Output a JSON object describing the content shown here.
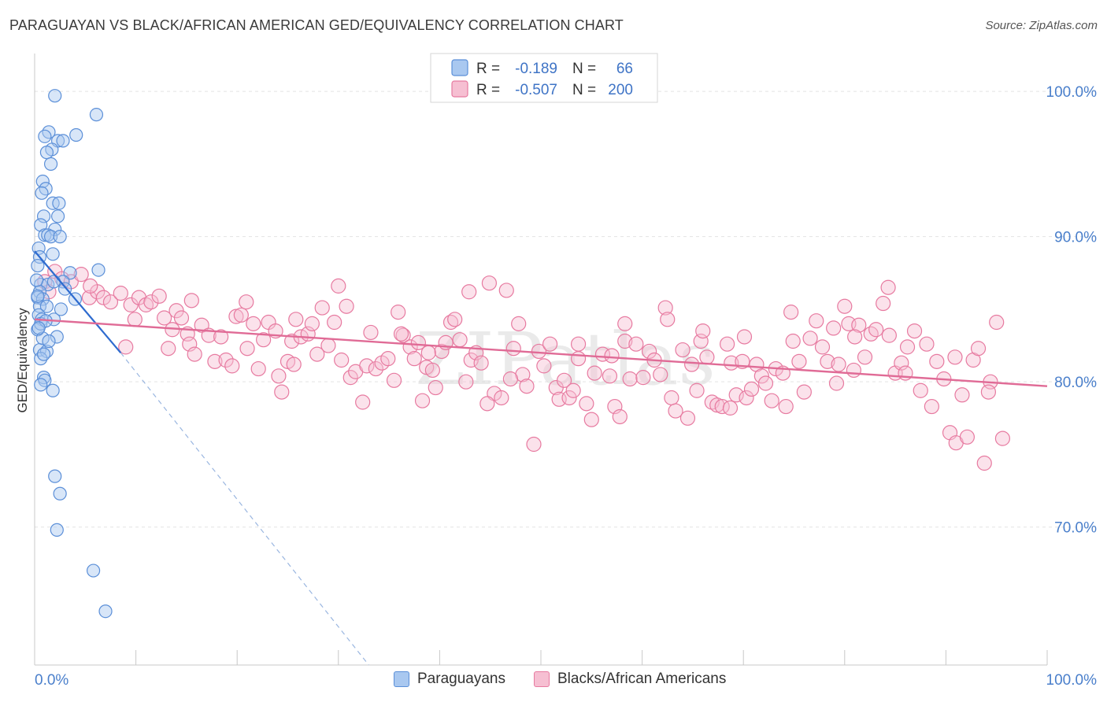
{
  "title": "PARAGUAYAN VS BLACK/AFRICAN AMERICAN GED/EQUIVALENCY CORRELATION CHART",
  "source": "Source: ZipAtlas.com",
  "watermark": "ZIPatlas",
  "colors": {
    "blue": "#5b8fd8",
    "blue_fill": "#a9c8f0",
    "blue_line": "#2e6bcf",
    "pink": "#e77aa0",
    "pink_fill": "#f6bfd2",
    "pink_line": "#e06b96",
    "axis_text": "#4a7fcb",
    "grid": "#e3e3e3"
  },
  "legend": {
    "row1": {
      "r_label": "R =",
      "r_value": "-0.189",
      "n_label": "N =",
      "n_value": "66"
    },
    "row2": {
      "r_label": "R =",
      "r_value": "-0.507",
      "n_label": "N =",
      "n_value": "200"
    }
  },
  "bottom_legend": {
    "paraguayans": "Paraguayans",
    "blacks": "Blacks/African Americans"
  },
  "chart_data": {
    "type": "scatter",
    "xlabel": "",
    "ylabel": "GED/Equivalency",
    "xlim": [
      0,
      100
    ],
    "ylim": [
      60.5,
      102.5
    ],
    "x_tick_labels": {
      "left": "0.0%",
      "right": "100.0%"
    },
    "y_ticks": [
      {
        "value": 100,
        "label": "100.0%"
      },
      {
        "value": 90,
        "label": "90.0%"
      },
      {
        "value": 80,
        "label": "80.0%"
      },
      {
        "value": 70,
        "label": "70.0%"
      }
    ],
    "grid": true,
    "series": [
      {
        "name": "Paraguayans",
        "color": "#5b8fd8",
        "trend": {
          "x0": 0,
          "y0": 89.0,
          "x1": 8.5,
          "y1": 82.0,
          "dash_to_x": 33,
          "dash_to_y": 60.5
        },
        "points": [
          [
            2.0,
            99.7
          ],
          [
            6.1,
            98.4
          ],
          [
            1.4,
            97.2
          ],
          [
            1.0,
            96.9
          ],
          [
            2.3,
            96.6
          ],
          [
            2.8,
            96.6
          ],
          [
            4.1,
            97.0
          ],
          [
            1.7,
            96.0
          ],
          [
            1.2,
            95.8
          ],
          [
            1.6,
            95.0
          ],
          [
            0.8,
            93.8
          ],
          [
            1.1,
            93.3
          ],
          [
            0.7,
            93.0
          ],
          [
            1.8,
            92.3
          ],
          [
            2.4,
            92.3
          ],
          [
            0.9,
            91.4
          ],
          [
            2.3,
            91.4
          ],
          [
            0.6,
            90.8
          ],
          [
            2.0,
            90.5
          ],
          [
            1.0,
            90.1
          ],
          [
            1.3,
            90.1
          ],
          [
            1.6,
            90.0
          ],
          [
            2.5,
            90.0
          ],
          [
            0.4,
            89.2
          ],
          [
            0.5,
            88.6
          ],
          [
            1.8,
            88.8
          ],
          [
            0.3,
            88.0
          ],
          [
            3.5,
            87.5
          ],
          [
            6.3,
            87.7
          ],
          [
            0.6,
            86.7
          ],
          [
            1.3,
            86.7
          ],
          [
            2.8,
            86.9
          ],
          [
            0.5,
            86.2
          ],
          [
            0.3,
            85.8
          ],
          [
            0.8,
            85.7
          ],
          [
            4.0,
            85.7
          ],
          [
            0.5,
            85.2
          ],
          [
            1.2,
            85.2
          ],
          [
            0.4,
            84.6
          ],
          [
            0.7,
            84.3
          ],
          [
            1.9,
            84.3
          ],
          [
            0.3,
            83.6
          ],
          [
            2.2,
            83.1
          ],
          [
            0.5,
            82.2
          ],
          [
            1.2,
            82.1
          ],
          [
            0.6,
            81.6
          ],
          [
            0.9,
            80.3
          ],
          [
            1.0,
            80.1
          ],
          [
            0.6,
            79.8
          ],
          [
            1.8,
            79.4
          ],
          [
            2.0,
            73.5
          ],
          [
            2.5,
            72.3
          ],
          [
            2.2,
            69.8
          ],
          [
            5.8,
            67.0
          ],
          [
            7.0,
            64.2
          ],
          [
            0.2,
            87.0
          ],
          [
            0.3,
            85.9
          ],
          [
            0.6,
            84.0
          ],
          [
            1.1,
            84.2
          ],
          [
            0.8,
            83.0
          ],
          [
            1.4,
            82.8
          ],
          [
            0.9,
            81.9
          ],
          [
            2.6,
            85.0
          ],
          [
            3.0,
            86.4
          ],
          [
            1.9,
            86.9
          ],
          [
            0.4,
            83.7
          ]
        ]
      },
      {
        "name": "Blacks/African Americans",
        "color": "#e77aa0",
        "trend": {
          "x0": 0,
          "y0": 84.3,
          "x1": 100,
          "y1": 79.7
        },
        "points": [
          [
            1.0,
            86.9
          ],
          [
            1.4,
            86.2
          ],
          [
            2.0,
            87.6
          ],
          [
            2.7,
            87.1
          ],
          [
            3.6,
            86.9
          ],
          [
            4.6,
            87.4
          ],
          [
            5.4,
            85.8
          ],
          [
            6.2,
            86.2
          ],
          [
            6.8,
            85.8
          ],
          [
            7.5,
            85.5
          ],
          [
            8.5,
            86.1
          ],
          [
            9.0,
            82.4
          ],
          [
            9.5,
            85.3
          ],
          [
            10.3,
            85.8
          ],
          [
            11.0,
            85.3
          ],
          [
            11.5,
            85.5
          ],
          [
            12.3,
            85.9
          ],
          [
            12.8,
            84.4
          ],
          [
            13.2,
            82.3
          ],
          [
            13.6,
            83.6
          ],
          [
            14.0,
            84.9
          ],
          [
            14.5,
            84.4
          ],
          [
            15.1,
            83.3
          ],
          [
            15.3,
            82.6
          ],
          [
            15.8,
            81.9
          ],
          [
            16.5,
            83.9
          ],
          [
            17.2,
            83.2
          ],
          [
            17.8,
            81.4
          ],
          [
            18.4,
            83.1
          ],
          [
            18.9,
            81.5
          ],
          [
            19.5,
            81.1
          ],
          [
            19.9,
            84.5
          ],
          [
            20.4,
            84.6
          ],
          [
            21.0,
            82.3
          ],
          [
            21.6,
            84.0
          ],
          [
            22.1,
            80.9
          ],
          [
            22.6,
            82.9
          ],
          [
            23.1,
            84.1
          ],
          [
            23.8,
            83.5
          ],
          [
            24.1,
            80.4
          ],
          [
            24.4,
            79.3
          ],
          [
            25.0,
            81.4
          ],
          [
            25.4,
            82.8
          ],
          [
            25.8,
            84.3
          ],
          [
            26.3,
            83.1
          ],
          [
            27.0,
            83.3
          ],
          [
            27.4,
            84.0
          ],
          [
            27.9,
            81.9
          ],
          [
            28.4,
            85.1
          ],
          [
            29.0,
            82.5
          ],
          [
            29.6,
            84.1
          ],
          [
            30.3,
            81.5
          ],
          [
            30.8,
            85.2
          ],
          [
            31.2,
            80.3
          ],
          [
            31.7,
            80.7
          ],
          [
            32.4,
            78.6
          ],
          [
            32.8,
            81.1
          ],
          [
            33.2,
            83.4
          ],
          [
            33.7,
            80.9
          ],
          [
            34.3,
            81.3
          ],
          [
            34.9,
            81.6
          ],
          [
            35.5,
            80.1
          ],
          [
            35.9,
            84.8
          ],
          [
            36.4,
            83.2
          ],
          [
            37.1,
            82.4
          ],
          [
            37.5,
            81.6
          ],
          [
            37.9,
            82.7
          ],
          [
            38.3,
            78.7
          ],
          [
            38.7,
            81.0
          ],
          [
            39.3,
            80.8
          ],
          [
            39.6,
            79.6
          ],
          [
            40.2,
            82.1
          ],
          [
            40.6,
            82.7
          ],
          [
            41.1,
            84.1
          ],
          [
            41.5,
            84.3
          ],
          [
            42.0,
            82.9
          ],
          [
            42.6,
            80.0
          ],
          [
            43.1,
            81.5
          ],
          [
            43.6,
            82.0
          ],
          [
            44.1,
            81.3
          ],
          [
            44.9,
            86.8
          ],
          [
            45.4,
            79.2
          ],
          [
            46.1,
            78.9
          ],
          [
            46.6,
            86.3
          ],
          [
            47.3,
            82.3
          ],
          [
            47.8,
            84.0
          ],
          [
            48.2,
            80.5
          ],
          [
            48.6,
            79.7
          ],
          [
            49.3,
            75.7
          ],
          [
            49.8,
            82.1
          ],
          [
            50.3,
            81.1
          ],
          [
            50.9,
            82.6
          ],
          [
            51.5,
            79.6
          ],
          [
            51.8,
            78.8
          ],
          [
            52.3,
            80.1
          ],
          [
            52.8,
            78.9
          ],
          [
            53.2,
            79.4
          ],
          [
            53.7,
            81.6
          ],
          [
            54.5,
            78.5
          ],
          [
            55.0,
            77.4
          ],
          [
            55.3,
            80.6
          ],
          [
            56.1,
            81.9
          ],
          [
            56.8,
            80.4
          ],
          [
            57.3,
            78.3
          ],
          [
            57.8,
            77.6
          ],
          [
            58.3,
            82.8
          ],
          [
            58.8,
            80.2
          ],
          [
            59.4,
            82.6
          ],
          [
            60.1,
            80.3
          ],
          [
            60.7,
            82.1
          ],
          [
            61.2,
            81.5
          ],
          [
            61.8,
            80.5
          ],
          [
            62.3,
            85.1
          ],
          [
            62.9,
            78.9
          ],
          [
            63.3,
            78.0
          ],
          [
            64.0,
            82.2
          ],
          [
            64.5,
            77.5
          ],
          [
            64.9,
            81.2
          ],
          [
            65.4,
            79.4
          ],
          [
            65.8,
            82.8
          ],
          [
            66.4,
            81.7
          ],
          [
            66.9,
            78.6
          ],
          [
            67.4,
            78.4
          ],
          [
            67.9,
            78.3
          ],
          [
            68.4,
            82.6
          ],
          [
            68.8,
            81.3
          ],
          [
            69.3,
            79.1
          ],
          [
            69.9,
            81.4
          ],
          [
            70.3,
            78.9
          ],
          [
            70.8,
            79.5
          ],
          [
            71.3,
            81.2
          ],
          [
            71.8,
            80.4
          ],
          [
            72.2,
            79.9
          ],
          [
            72.8,
            78.7
          ],
          [
            73.2,
            80.9
          ],
          [
            73.9,
            80.6
          ],
          [
            74.2,
            78.3
          ],
          [
            74.9,
            82.8
          ],
          [
            75.5,
            81.4
          ],
          [
            76.0,
            79.3
          ],
          [
            76.6,
            83.0
          ],
          [
            77.2,
            84.2
          ],
          [
            77.8,
            82.4
          ],
          [
            78.3,
            81.4
          ],
          [
            78.9,
            83.7
          ],
          [
            79.4,
            81.2
          ],
          [
            80.0,
            85.2
          ],
          [
            80.4,
            84.0
          ],
          [
            80.9,
            80.8
          ],
          [
            81.4,
            83.9
          ],
          [
            82.0,
            81.7
          ],
          [
            82.6,
            83.3
          ],
          [
            83.1,
            83.6
          ],
          [
            83.8,
            85.4
          ],
          [
            84.4,
            83.2
          ],
          [
            85.0,
            80.6
          ],
          [
            85.6,
            81.3
          ],
          [
            86.2,
            82.4
          ],
          [
            86.9,
            83.5
          ],
          [
            87.5,
            79.4
          ],
          [
            88.1,
            82.6
          ],
          [
            88.6,
            78.3
          ],
          [
            89.1,
            81.4
          ],
          [
            89.8,
            80.2
          ],
          [
            90.4,
            76.5
          ],
          [
            91.0,
            75.8
          ],
          [
            91.6,
            79.1
          ],
          [
            92.1,
            76.2
          ],
          [
            92.7,
            81.5
          ],
          [
            93.2,
            82.3
          ],
          [
            93.8,
            74.4
          ],
          [
            94.4,
            80.0
          ],
          [
            95.0,
            84.1
          ],
          [
            95.6,
            76.1
          ],
          [
            38.9,
            82.0
          ],
          [
            44.7,
            78.5
          ],
          [
            53.7,
            82.6
          ],
          [
            57.0,
            81.8
          ],
          [
            62.5,
            84.3
          ],
          [
            66.0,
            83.5
          ],
          [
            70.1,
            83.1
          ],
          [
            74.7,
            84.8
          ],
          [
            79.2,
            79.9
          ],
          [
            84.3,
            86.5
          ],
          [
            86.0,
            80.6
          ],
          [
            90.9,
            81.7
          ],
          [
            15.5,
            85.6
          ],
          [
            25.6,
            81.2
          ],
          [
            36.2,
            83.3
          ],
          [
            47.0,
            80.2
          ],
          [
            58.3,
            84.0
          ],
          [
            68.7,
            78.2
          ],
          [
            81.0,
            83.1
          ],
          [
            94.2,
            79.3
          ],
          [
            30.0,
            86.6
          ],
          [
            42.9,
            86.2
          ],
          [
            20.9,
            85.5
          ],
          [
            9.9,
            84.3
          ],
          [
            5.5,
            86.6
          ]
        ]
      }
    ]
  }
}
